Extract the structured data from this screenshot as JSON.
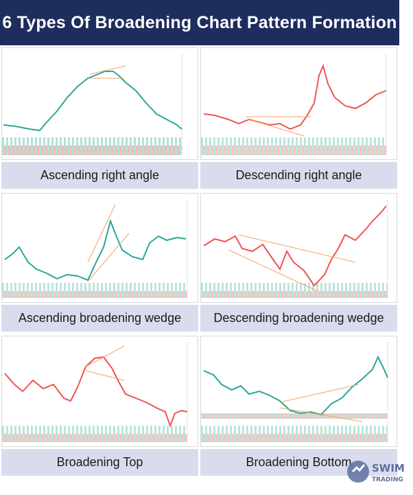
{
  "title": "6 Types Of Broadening Chart Pattern Formation",
  "panels": [
    {
      "caption": "Ascending right angle"
    },
    {
      "caption": "Descending right angle"
    },
    {
      "caption": "Ascending broadening wedge"
    },
    {
      "caption": "Descending broadening wedge"
    },
    {
      "caption": "Broadening Top"
    },
    {
      "caption": "Broadening Bottom"
    }
  ],
  "logo": {
    "text": "SWIM",
    "subtext": "TRADING"
  }
}
